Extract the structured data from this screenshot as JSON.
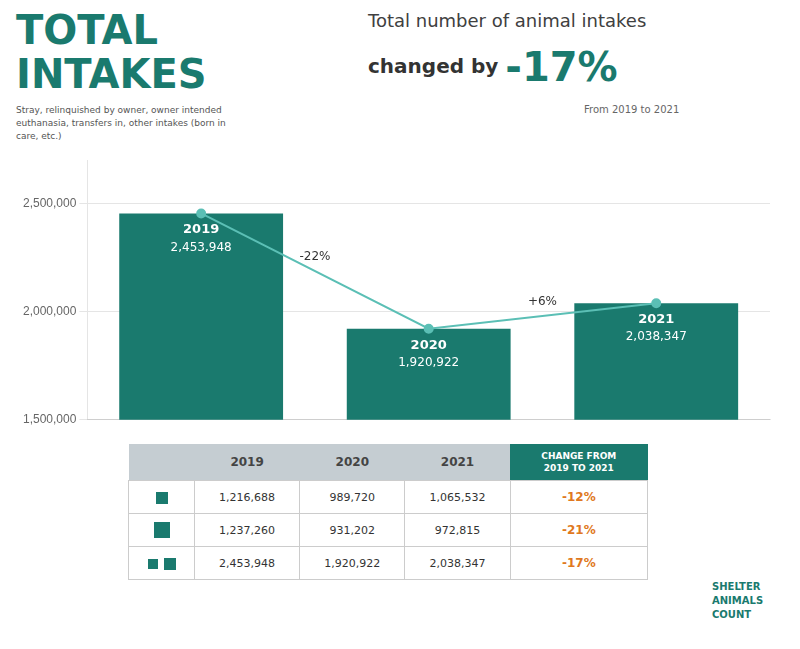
{
  "chart_data": {
    "type": "bar",
    "title": [
      "TOTAL",
      "INTAKES"
    ],
    "subtitle": "Stray, relinquished by owner, owner intended\neuthanasia, transfers in, other intakes (born in\ncare, etc.)",
    "headline": "Total number of animal intakes",
    "change_text": "changed by ",
    "change_value": "-17%",
    "change_period": "From 2019 to 2021",
    "categories": [
      "2019",
      "2020",
      "2021"
    ],
    "series": [
      {
        "type": "bar",
        "color": "#1a7a6e",
        "values": [
          2453948,
          1920922,
          2038347
        ],
        "value_labels": [
          "2,453,948",
          "1,920,922",
          "2,038,347"
        ]
      },
      {
        "type": "line",
        "color": "#5bbfb5",
        "marker": "circle",
        "values": [
          2453948,
          1920922,
          2038347
        ]
      }
    ],
    "data_labels": true,
    "annotations": [
      "-22%",
      "+6%"
    ],
    "ylim": [
      1500000,
      2700000
    ],
    "yticks": [
      {
        "value": 1500000,
        "label": "1,500,000"
      },
      {
        "value": 2000000,
        "label": "2,000,000"
      },
      {
        "value": 2500000,
        "label": "2,500,000"
      }
    ],
    "grid": true,
    "tick_labels": "y",
    "table": {
      "columns": [
        "2019",
        "2020",
        "2021",
        "CHANGE FROM\n2019 TO 2021"
      ],
      "rows": [
        {
          "values": [
            "1,216,688",
            "989,720",
            "1,065,532"
          ],
          "change": "-12%"
        },
        {
          "values": [
            "1,237,260",
            "931,202",
            "972,815"
          ],
          "change": "-21%"
        },
        {
          "values": [
            "2,453,948",
            "1,920,922",
            "2,038,347"
          ],
          "change": "-17%"
        }
      ]
    },
    "logo": "SHELTER\nANIMALS\nCOUNT"
  }
}
